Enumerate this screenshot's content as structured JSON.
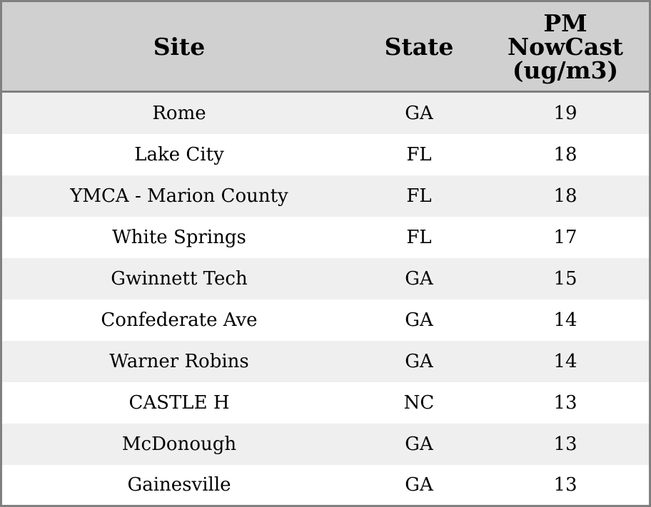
{
  "chart_data": {
    "type": "table",
    "columns": [
      "Site",
      "State",
      "PM NowCast (ug/m3)"
    ],
    "header_lines": [
      [
        "Site"
      ],
      [
        "State"
      ],
      [
        "PM",
        "NowCast",
        "(ug/m3)"
      ]
    ],
    "rows": [
      [
        "Rome",
        "GA",
        "19"
      ],
      [
        "Lake City",
        "FL",
        "18"
      ],
      [
        "YMCA - Marion County",
        "FL",
        "18"
      ],
      [
        "White Springs",
        "FL",
        "17"
      ],
      [
        "Gwinnett Tech",
        "GA",
        "15"
      ],
      [
        "Confederate Ave",
        "GA",
        "14"
      ],
      [
        "Warner Robins",
        "GA",
        "14"
      ],
      [
        "CASTLE H",
        "NC",
        "13"
      ],
      [
        "McDonough",
        "GA",
        "13"
      ],
      [
        "Gainesville",
        "GA",
        "13"
      ]
    ]
  },
  "colors": {
    "header_background": "#d0d0d0",
    "band_odd": "#efefef",
    "band_even": "#ffffff",
    "border": "#808080"
  }
}
